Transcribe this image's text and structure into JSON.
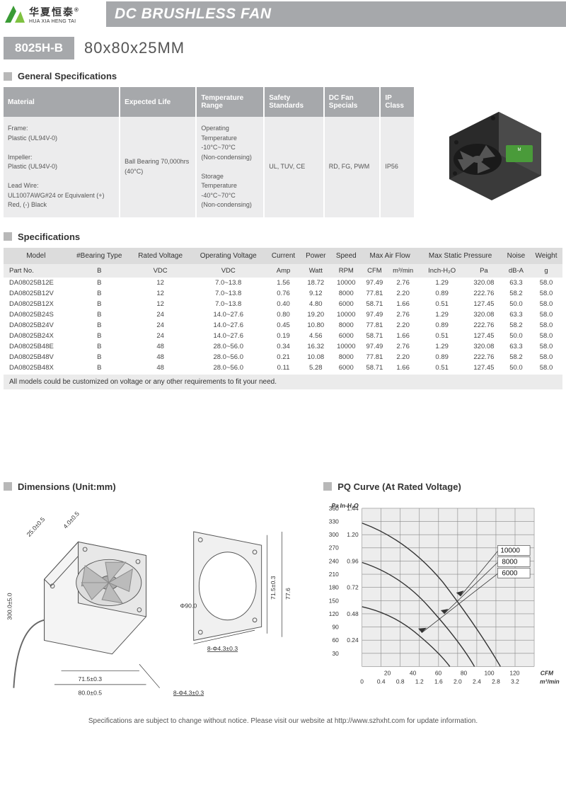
{
  "brand": {
    "cn": "华夏恒泰",
    "en": "HUA XIA HENG TAI",
    "reg": "®"
  },
  "title": "DC BRUSHLESS FAN",
  "model": {
    "badge": "8025H-B",
    "dim": "80x80x25MM"
  },
  "sections": {
    "general": "General Specifications",
    "specs": "Specifications",
    "dims": "Dimensions (Unit:mm)",
    "pq": "PQ Curve (At Rated Voltage)"
  },
  "genTable": {
    "headers": [
      "Material",
      "Expected Life",
      "Temperature Range",
      "Safety Standards",
      "DC Fan Specials",
      "IP Class"
    ],
    "cells": [
      "Frame:\nPlastic (UL94V-0)\n\nImpeller:\nPlastic (UL94V-0)\n\nLead Wire:\nUL1007AWG#24 or Equivalent (+) Red, (-) Black",
      "Ball Bearing 70,000hrs (40°C)",
      "Operating Temperature\n-10°C~70°C\n (Non-condensing)\n\nStorage Temperature\n-40°C~70°C\n(Non-condensing)",
      "UL, TUV, CE",
      "RD, FG, PWM",
      "IP56"
    ]
  },
  "specTable": {
    "h1": [
      "Model",
      "#Bearing Type",
      "Rated Voltage",
      "Operating Voltage",
      "Current",
      "Power",
      "Speed",
      "Max Air Flow",
      "",
      "Max Static Pressure",
      "",
      "Noise",
      "Weight"
    ],
    "h2": [
      "Part No.",
      "B",
      "VDC",
      "VDC",
      "Amp",
      "Watt",
      "RPM",
      "CFM",
      "m³/min",
      "Inch-H₂O",
      "Pa",
      "dB-A",
      "g"
    ],
    "rows": [
      [
        "DA08025B12E",
        "B",
        "12",
        "7.0~13.8",
        "1.56",
        "18.72",
        "10000",
        "97.49",
        "2.76",
        "1.29",
        "320.08",
        "63.3",
        "58.0"
      ],
      [
        "DA08025B12V",
        "B",
        "12",
        "7.0~13.8",
        "0.76",
        "9.12",
        "8000",
        "77.81",
        "2.20",
        "0.89",
        "222.76",
        "58.2",
        "58.0"
      ],
      [
        "DA08025B12X",
        "B",
        "12",
        "7.0~13.8",
        "0.40",
        "4.80",
        "6000",
        "58.71",
        "1.66",
        "0.51",
        "127.45",
        "50.0",
        "58.0"
      ],
      [
        "DA08025B24S",
        "B",
        "24",
        "14.0~27.6",
        "0.80",
        "19.20",
        "10000",
        "97.49",
        "2.76",
        "1.29",
        "320.08",
        "63.3",
        "58.0"
      ],
      [
        "DA08025B24V",
        "B",
        "24",
        "14.0~27.6",
        "0.45",
        "10.80",
        "8000",
        "77.81",
        "2.20",
        "0.89",
        "222.76",
        "58.2",
        "58.0"
      ],
      [
        "DA08025B24X",
        "B",
        "24",
        "14.0~27.6",
        "0.19",
        "4.56",
        "6000",
        "58.71",
        "1.66",
        "0.51",
        "127.45",
        "50.0",
        "58.0"
      ],
      [
        "DA08025B48E",
        "B",
        "48",
        "28.0~56.0",
        "0.34",
        "16.32",
        "10000",
        "97.49",
        "2.76",
        "1.29",
        "320.08",
        "63.3",
        "58.0"
      ],
      [
        "DA08025B48V",
        "B",
        "48",
        "28.0~56.0",
        "0.21",
        "10.08",
        "8000",
        "77.81",
        "2.20",
        "0.89",
        "222.76",
        "58.2",
        "58.0"
      ],
      [
        "DA08025B48X",
        "B",
        "48",
        "28.0~56.0",
        "0.11",
        "5.28",
        "6000",
        "58.71",
        "1.66",
        "0.51",
        "127.45",
        "50.0",
        "58.0"
      ]
    ],
    "note": "All models could be customized on voltage or any other requirements to fit your need."
  },
  "dims": {
    "labels": [
      "25.0±0.5",
      "4.0±0.5",
      "300.0±5.0",
      "71.5±0.3",
      "80.0±0.5",
      "Φ90.0",
      "71.5±0.3",
      "77.6",
      "8-Φ4.3±0.3",
      "8-Φ4.3±0.3"
    ]
  },
  "pq": {
    "yPa": [
      "Pa",
      "360",
      "330",
      "300",
      "270",
      "240",
      "210",
      "180",
      "150",
      "120",
      "90",
      "60",
      "30"
    ],
    "yIn": [
      "In-H₂O",
      "1.44",
      "",
      "1.20",
      "",
      "0.96",
      "",
      "0.72",
      "",
      "0.48",
      "",
      "0.24",
      ""
    ],
    "xCfm": [
      "20",
      "40",
      "60",
      "80",
      "100",
      "120",
      "CFM"
    ],
    "xMm": [
      "0",
      "0.4",
      "0.8",
      "1.2",
      "1.6",
      "2.0",
      "2.4",
      "2.8",
      "3.2",
      "m³/min"
    ],
    "series": [
      "10000",
      "8000",
      "6000"
    ],
    "colors": {
      "bg": "#ededed",
      "grid": "#888",
      "line": "#333"
    }
  },
  "footer": "Specifications are subject to change without notice. Please visit our website at http://www.szhxht.com for update information."
}
